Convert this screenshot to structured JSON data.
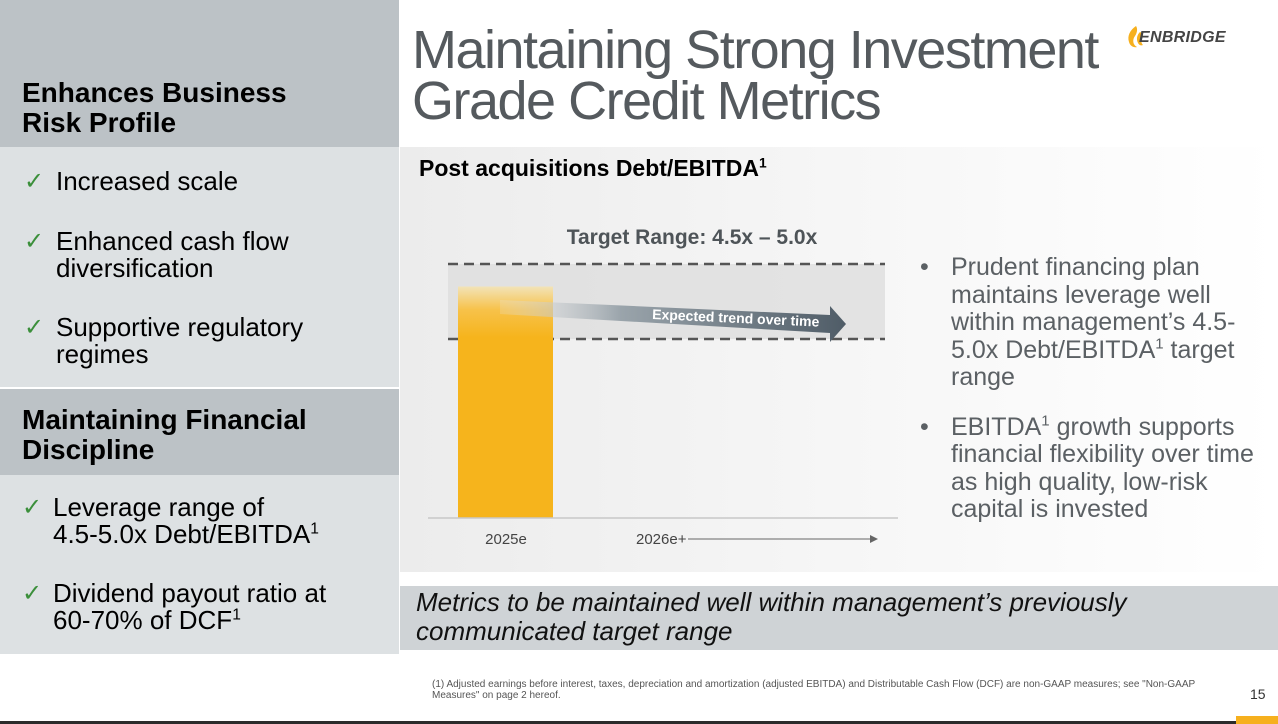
{
  "sidebar": {
    "section1": {
      "heading_line1": "Enhances Business",
      "heading_line2": "Risk Profile",
      "items": [
        {
          "text": "Increased scale"
        },
        {
          "text_line1": "Enhanced cash flow",
          "text_line2": "diversification"
        },
        {
          "text_line1": "Supportive regulatory",
          "text_line2": "regimes"
        }
      ]
    },
    "section2": {
      "heading_line1": "Maintaining Financial",
      "heading_line2": "Discipline",
      "items": [
        {
          "text_line1": "Leverage range of",
          "text_line2": "4.5-5.0x Debt/EBITDA",
          "sup": "1"
        },
        {
          "text_line1": "Dividend payout ratio at",
          "text_line2": "60-70% of DCF",
          "sup": "1"
        }
      ]
    },
    "check_glyph": "✓"
  },
  "title": {
    "line1": "Maintaining Strong Investment",
    "line2": "Grade Credit Metrics"
  },
  "logo": {
    "text": "ENBRIDGE"
  },
  "chart_title": {
    "text": "Post acquisitions Debt/EBITDA",
    "sup": "1"
  },
  "chart_data": {
    "type": "bar",
    "categories": [
      "2025e",
      "2026e+"
    ],
    "values": [
      4.85,
      null
    ],
    "target_range": {
      "label": "Target Range: 4.5x – 5.0x",
      "low": 4.5,
      "high": 5.0
    },
    "annotation": "Expected trend over time",
    "ylim": [
      0,
      5.2
    ],
    "colors": {
      "bar": "#f6b41c",
      "range_band": "#dcdcdc",
      "arrow": "#5e6b76"
    }
  },
  "bullets": [
    {
      "marker": "•",
      "part1": "Prudent financing plan maintains leverage well within management’s 4.5-5.0x Debt/EBITDA",
      "sup": "1",
      "part2": " target range"
    },
    {
      "marker": "•",
      "part1": "EBITDA",
      "sup": "1",
      "part2": " growth supports financial flexibility over time as high quality, low-risk capital is invested"
    }
  ],
  "banner": {
    "line1": "Metrics to be maintained well within management’s previously",
    "line2": "communicated target range"
  },
  "footnote": "(1) Adjusted earnings before interest, taxes, depreciation and amortization (adjusted EBITDA) and Distributable Cash Flow (DCF) are non-GAAP measures; see \"Non-GAAP Measures\" on page 2 hereof.",
  "page_number": "15"
}
